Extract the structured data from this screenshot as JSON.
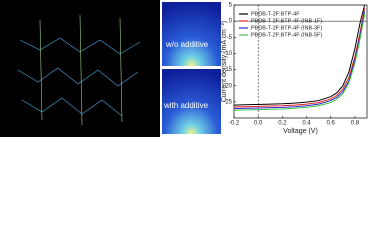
{
  "images": {
    "top_label": "w/o additive",
    "bottom_label": "with additive"
  },
  "chart_data": {
    "type": "line",
    "x_label": "Voltage (V)",
    "y_label": "Current density (mA cm⁻²)",
    "x": [
      -0.2,
      -0.1,
      0,
      0.1,
      0.2,
      0.3,
      0.4,
      0.5,
      0.6,
      0.65,
      0.7,
      0.75,
      0.8,
      0.84,
      0.88
    ],
    "series": [
      {
        "name": "PBDB-T-2F:BTP-4F",
        "color": "#000000",
        "values": [
          -26.0,
          -25.9,
          -25.8,
          -25.7,
          -25.6,
          -25.4,
          -25.1,
          -24.6,
          -23.4,
          -22.2,
          -20.0,
          -15.8,
          -8.5,
          -1.0,
          5
        ]
      },
      {
        "name": "PBDB-T-2F:BTP-4F (INB-1F)",
        "color": "#e8211c",
        "values": [
          -26.6,
          -26.5,
          -26.4,
          -26.3,
          -26.2,
          -26.0,
          -25.7,
          -25.2,
          -24.1,
          -23.0,
          -21.0,
          -17.5,
          -11.0,
          -4.0,
          4
        ]
      },
      {
        "name": "PBDB-T-2F:BTP-4F (INB-3F)",
        "color": "#2c2cd8",
        "values": [
          -27.1,
          -27.0,
          -26.9,
          -26.8,
          -26.7,
          -26.5,
          -26.2,
          -25.7,
          -24.6,
          -23.6,
          -21.8,
          -18.5,
          -12.0,
          -5.0,
          3
        ]
      },
      {
        "name": "PBDB-T-2F:BTP-4F (INB-5F)",
        "color": "#3cc43c",
        "values": [
          -27.6,
          -27.5,
          -27.4,
          -27.3,
          -27.2,
          -27.0,
          -26.7,
          -26.2,
          -25.2,
          -24.2,
          -22.5,
          -19.2,
          -13.0,
          -6.0,
          2
        ]
      }
    ],
    "xlim": [
      -0.2,
      0.9
    ],
    "xticks": [
      -0.2,
      {
        "value": 0,
        "label": "0.0"
      },
      0.2,
      0.4,
      0.6,
      0.8
    ],
    "ylim": [
      -30,
      5
    ],
    "yticks": [
      5,
      0,
      -5,
      -10,
      -15,
      -20,
      -25
    ],
    "legend": "upper left",
    "grid": false
  }
}
